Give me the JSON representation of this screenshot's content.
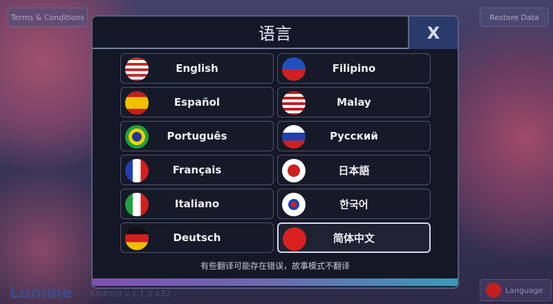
{
  "background": {
    "terms_label": "Terms & Conditions",
    "restore_label": "Restore Data",
    "logo": "Lunime",
    "version": "Android v.1.1.0 x32",
    "language_button": "Language"
  },
  "modal": {
    "title": "语言",
    "close_label": "X",
    "note": "有些翻译可能存在错误，故事模式不翻译",
    "selected": "简体中文",
    "languages": [
      {
        "label": "English",
        "flag": "us"
      },
      {
        "label": "Filipino",
        "flag": "ph"
      },
      {
        "label": "Español",
        "flag": "es"
      },
      {
        "label": "Malay",
        "flag": "my"
      },
      {
        "label": "Português",
        "flag": "br"
      },
      {
        "label": "Русский",
        "flag": "ru"
      },
      {
        "label": "Français",
        "flag": "fr"
      },
      {
        "label": "日本語",
        "flag": "jp"
      },
      {
        "label": "Italiano",
        "flag": "it"
      },
      {
        "label": "한국어",
        "flag": "kr"
      },
      {
        "label": "Deutsch",
        "flag": "de"
      },
      {
        "label": "简体中文",
        "flag": "cn"
      }
    ]
  }
}
